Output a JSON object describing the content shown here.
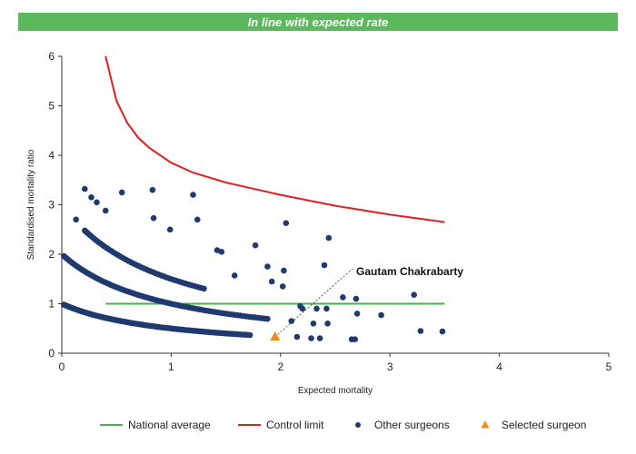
{
  "banner": {
    "text": "In line with expected rate",
    "color": "#5cb85c"
  },
  "chart_data": {
    "type": "scatter",
    "xlabel": "Expected mortality",
    "ylabel": "Standardised mortality ratio",
    "xlim": [
      0,
      5
    ],
    "ylim": [
      0,
      6
    ],
    "x_ticks": [
      0,
      1,
      2,
      3,
      4,
      5
    ],
    "y_ticks": [
      0,
      1,
      2,
      3,
      4,
      5,
      6
    ],
    "grid": false,
    "legend_position": "bottom",
    "series": [
      {
        "name": "National average",
        "kind": "line",
        "color": "#4caf50",
        "x": [
          0.4,
          3.5
        ],
        "y": [
          1,
          1
        ]
      },
      {
        "name": "Control limit",
        "kind": "line",
        "color": "#e02020",
        "x": [
          0.4,
          0.5,
          0.6,
          0.7,
          0.8,
          1.0,
          1.2,
          1.5,
          1.8,
          2.0,
          2.5,
          3.0,
          3.5
        ],
        "y": [
          6.0,
          5.1,
          4.65,
          4.35,
          4.15,
          3.85,
          3.65,
          3.45,
          3.3,
          3.2,
          2.98,
          2.8,
          2.65
        ]
      },
      {
        "name": "Other surgeons",
        "kind": "scatter",
        "color": "#1f3a6e",
        "curves": [
          {
            "numerator": 1,
            "x_from": 0.02,
            "x_to": 1.72,
            "count": 95
          },
          {
            "numerator": 2,
            "x_from": 0.02,
            "x_to": 1.88,
            "count": 85
          },
          {
            "numerator": 3,
            "x_from": 0.21,
            "x_to": 1.3,
            "count": 48
          }
        ],
        "points": [
          {
            "x": 0.13,
            "y": 2.7
          },
          {
            "x": 0.21,
            "y": 3.32
          },
          {
            "x": 0.27,
            "y": 3.15
          },
          {
            "x": 0.32,
            "y": 3.05
          },
          {
            "x": 0.4,
            "y": 2.88
          },
          {
            "x": 0.55,
            "y": 3.25
          },
          {
            "x": 0.83,
            "y": 3.3
          },
          {
            "x": 0.84,
            "y": 2.73
          },
          {
            "x": 0.99,
            "y": 2.5
          },
          {
            "x": 1.2,
            "y": 3.2
          },
          {
            "x": 1.24,
            "y": 2.7
          },
          {
            "x": 1.42,
            "y": 2.08
          },
          {
            "x": 1.46,
            "y": 2.05
          },
          {
            "x": 1.58,
            "y": 1.57
          },
          {
            "x": 1.77,
            "y": 2.18
          },
          {
            "x": 1.88,
            "y": 1.75
          },
          {
            "x": 1.92,
            "y": 1.45
          },
          {
            "x": 2.02,
            "y": 1.35
          },
          {
            "x": 2.03,
            "y": 1.67
          },
          {
            "x": 2.05,
            "y": 2.63
          },
          {
            "x": 2.1,
            "y": 0.65
          },
          {
            "x": 2.15,
            "y": 0.33
          },
          {
            "x": 2.18,
            "y": 0.95
          },
          {
            "x": 2.2,
            "y": 0.9
          },
          {
            "x": 2.28,
            "y": 0.3
          },
          {
            "x": 2.3,
            "y": 0.6
          },
          {
            "x": 2.33,
            "y": 0.9
          },
          {
            "x": 2.36,
            "y": 0.3
          },
          {
            "x": 2.4,
            "y": 1.78
          },
          {
            "x": 2.42,
            "y": 0.9
          },
          {
            "x": 2.43,
            "y": 0.6
          },
          {
            "x": 2.44,
            "y": 2.33
          },
          {
            "x": 2.57,
            "y": 1.13
          },
          {
            "x": 2.65,
            "y": 0.28
          },
          {
            "x": 2.68,
            "y": 0.28
          },
          {
            "x": 2.69,
            "y": 1.1
          },
          {
            "x": 2.7,
            "y": 0.8
          },
          {
            "x": 2.92,
            "y": 0.77
          },
          {
            "x": 3.22,
            "y": 1.18
          },
          {
            "x": 3.28,
            "y": 0.45
          },
          {
            "x": 3.48,
            "y": 0.44
          }
        ]
      },
      {
        "name": "Selected surgeon",
        "kind": "marker",
        "color": "#f08c1e",
        "x": [
          1.95
        ],
        "y": [
          0.33
        ]
      }
    ],
    "annotations": [
      {
        "text": "Gautam Chakrabarty",
        "target_x": 1.95,
        "target_y": 0.33
      }
    ]
  }
}
